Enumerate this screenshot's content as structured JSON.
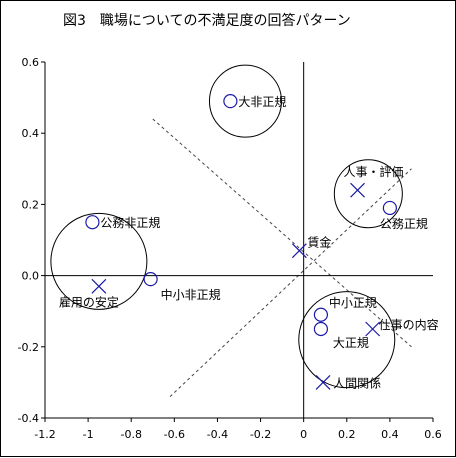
{
  "chart_data": {
    "type": "scatter",
    "title": "図3　職場についての不満足度の回答パターン",
    "xlim": [
      -1.2,
      0.6
    ],
    "ylim": [
      -0.4,
      0.6
    ],
    "x_ticks": [
      "-1.2",
      "-1",
      "-0.8",
      "-0.6",
      "-0.4",
      "-0.2",
      "0",
      "0.2",
      "0.4",
      "0.6"
    ],
    "y_ticks": [
      "0.6",
      "0.4",
      "0.2",
      "0.0",
      "-0.2",
      "-0.4"
    ],
    "grid": false,
    "series": [
      {
        "marker": "circle",
        "points": [
          {
            "label": "大非正規",
            "x": -0.34,
            "y": 0.49
          },
          {
            "label": "公務非正規",
            "x": -0.98,
            "y": 0.15
          },
          {
            "label": "中小非正規",
            "x": -0.71,
            "y": -0.01
          },
          {
            "label": "公務正規",
            "x": 0.4,
            "y": 0.19
          },
          {
            "label": "中小正規",
            "x": 0.08,
            "y": -0.11
          },
          {
            "label": "大正規",
            "x": 0.08,
            "y": -0.15
          }
        ]
      },
      {
        "marker": "cross",
        "points": [
          {
            "label": "人事・評価",
            "x": 0.25,
            "y": 0.24
          },
          {
            "label": "雇用の安定",
            "x": -0.95,
            "y": -0.03
          },
          {
            "label": "賃金",
            "x": -0.02,
            "y": 0.07
          },
          {
            "label": "仕事の内容",
            "x": 0.32,
            "y": -0.15
          },
          {
            "label": "人間関係",
            "x": 0.09,
            "y": -0.3
          }
        ]
      }
    ]
  }
}
